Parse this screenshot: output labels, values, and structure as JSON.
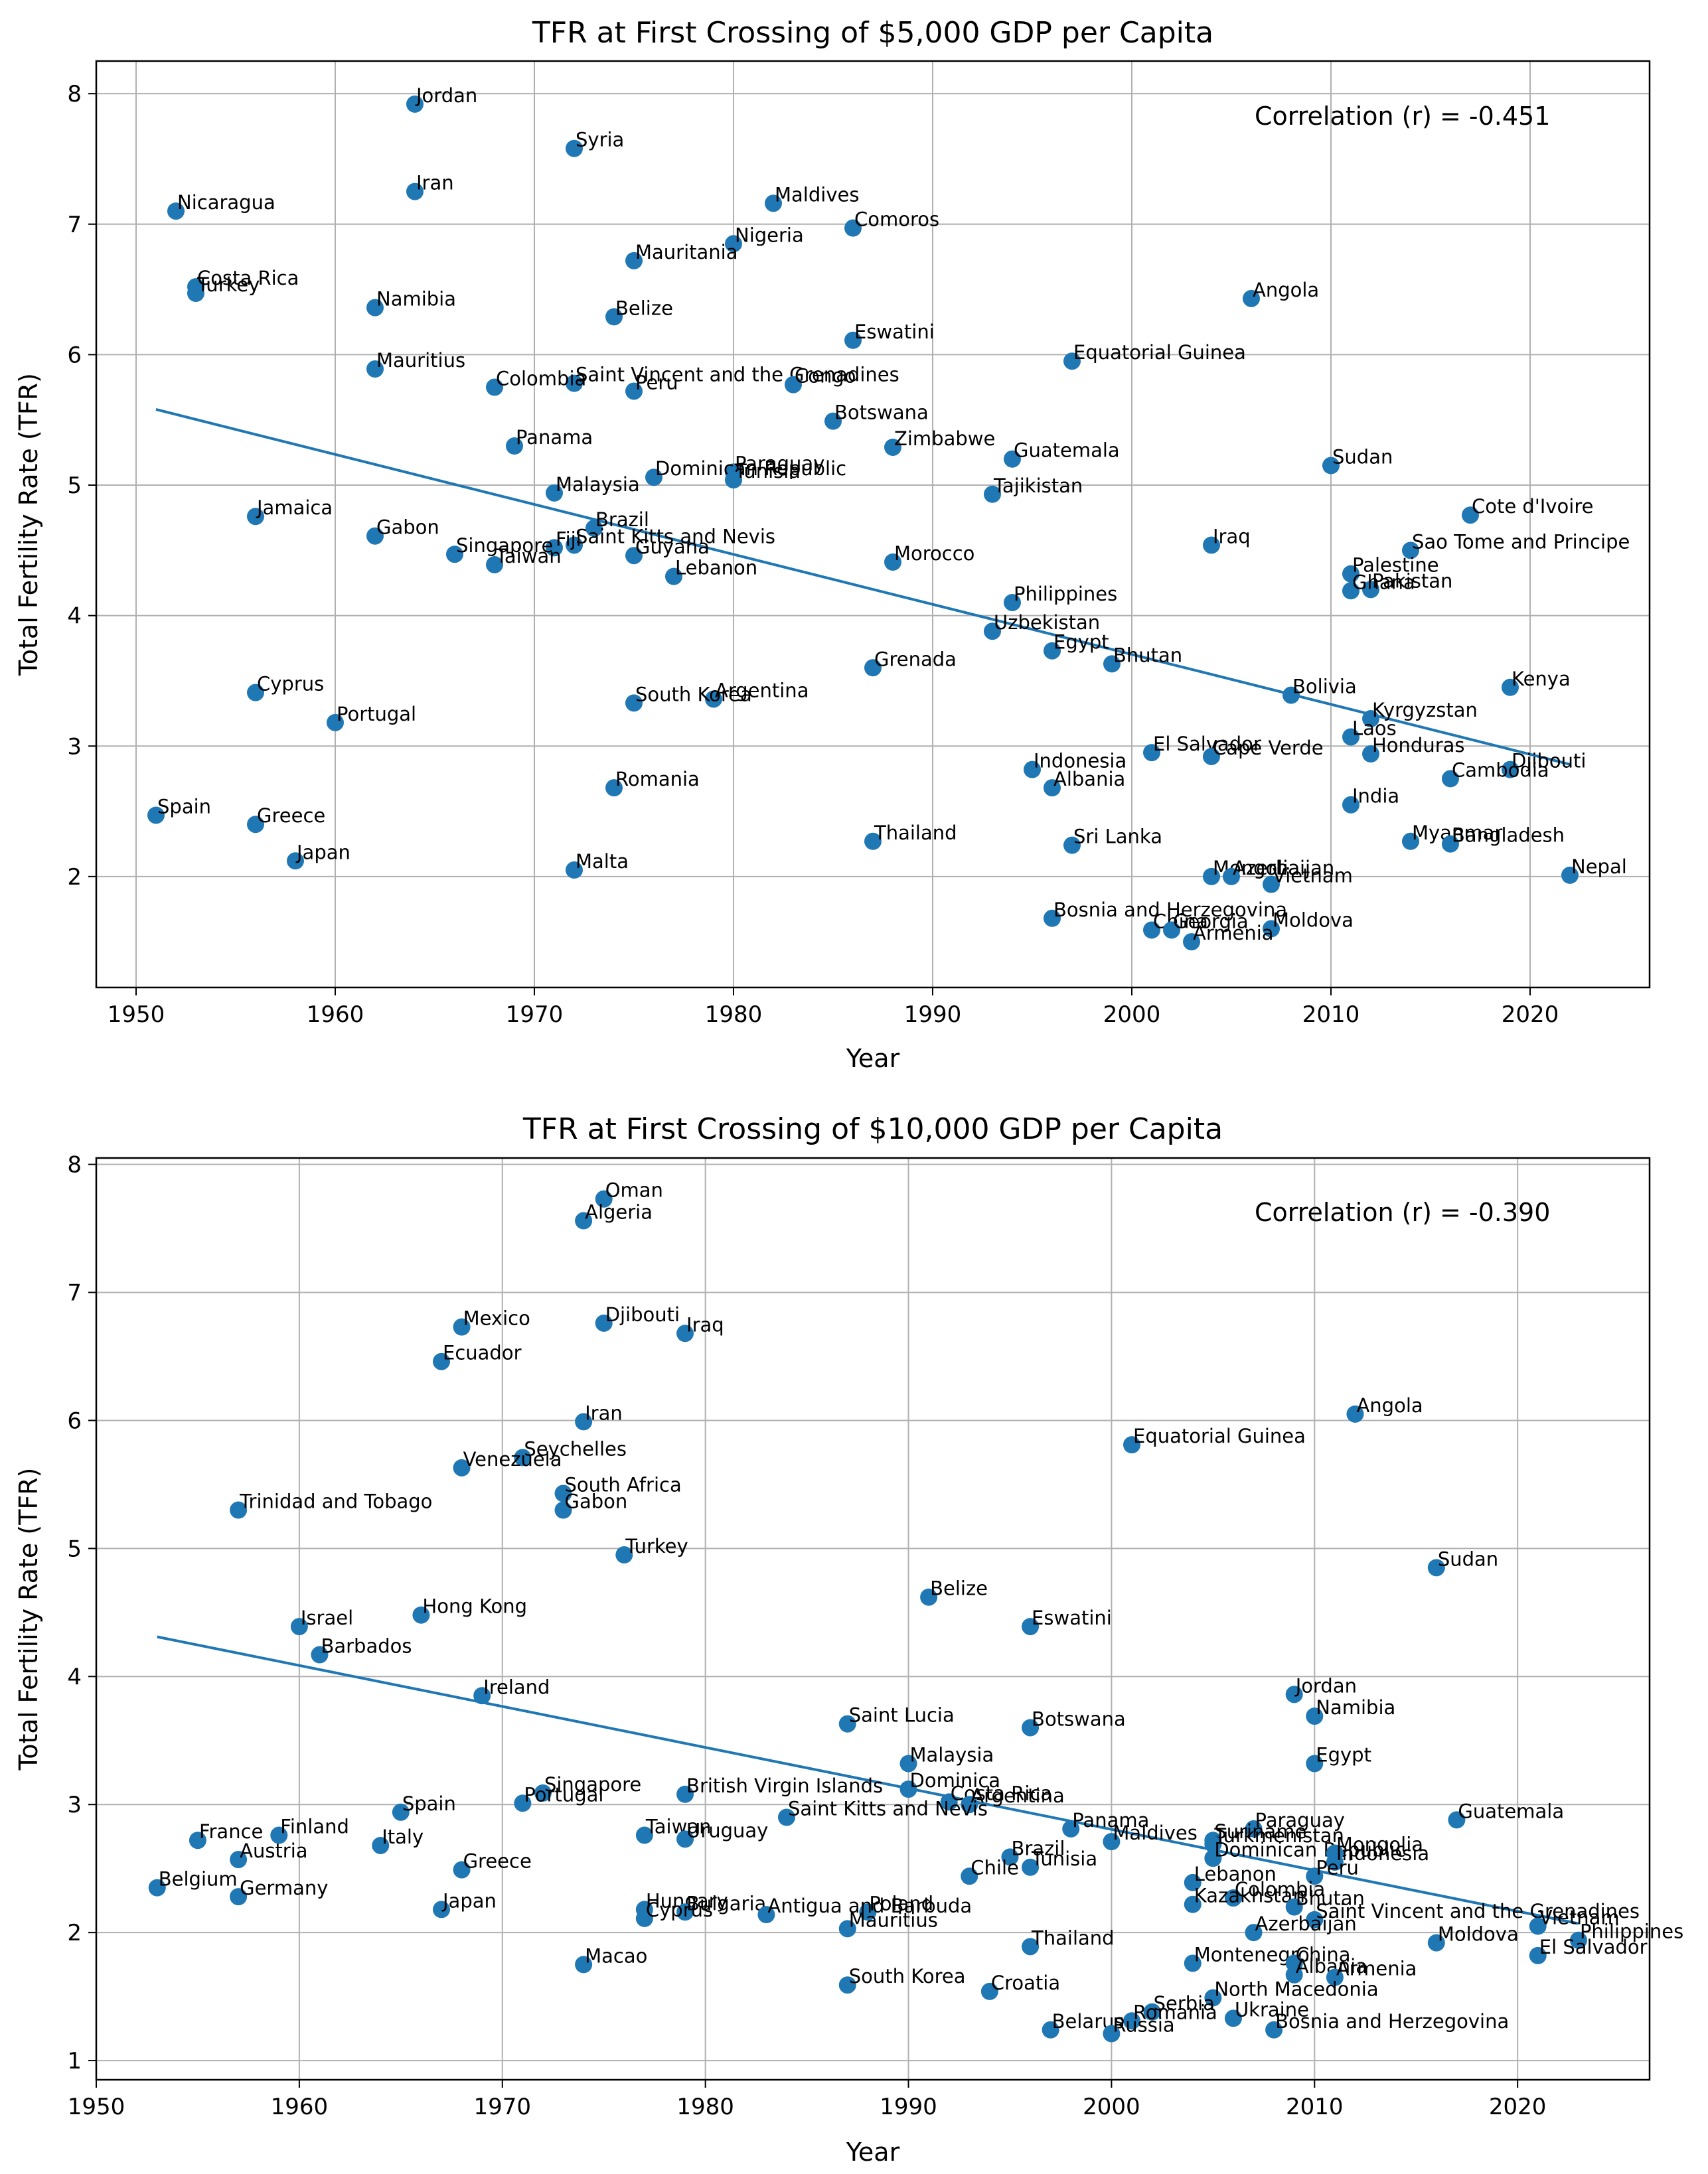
{
  "chart_data": [
    {
      "type": "scatter",
      "title": "TFR at First Crossing of $5,000 GDP per Capita",
      "xlabel": "Year",
      "ylabel": "Total Fertility Rate (TFR)",
      "xlim": [
        1948,
        2026
      ],
      "ylim": [
        1.15,
        8.25
      ],
      "xticks": [
        1950,
        1960,
        1970,
        1980,
        1990,
        2000,
        2010,
        2020
      ],
      "yticks": [
        2,
        3,
        4,
        5,
        6,
        7,
        8
      ],
      "grid": true,
      "annotation": "Correlation (r) = -0.451",
      "color": "#1f77b4",
      "trendline": {
        "x": [
          1951,
          2022
        ],
        "y": [
          5.58,
          2.86
        ]
      },
      "points": [
        {
          "label": "Jordan",
          "x": 1964,
          "y": 7.92
        },
        {
          "label": "Syria",
          "x": 1972,
          "y": 7.58
        },
        {
          "label": "Iran",
          "x": 1964,
          "y": 7.25
        },
        {
          "label": "Maldives",
          "x": 1982,
          "y": 7.16
        },
        {
          "label": "Nicaragua",
          "x": 1952,
          "y": 7.1
        },
        {
          "label": "Comoros",
          "x": 1986,
          "y": 6.97
        },
        {
          "label": "Nigeria",
          "x": 1980,
          "y": 6.85
        },
        {
          "label": "Mauritania",
          "x": 1975,
          "y": 6.72
        },
        {
          "label": "Costa Rica",
          "x": 1953,
          "y": 6.52
        },
        {
          "label": "Turkey",
          "x": 1953,
          "y": 6.47
        },
        {
          "label": "Angola",
          "x": 2006,
          "y": 6.43
        },
        {
          "label": "Namibia",
          "x": 1962,
          "y": 6.36
        },
        {
          "label": "Belize",
          "x": 1974,
          "y": 6.29
        },
        {
          "label": "Eswatini",
          "x": 1986,
          "y": 6.11
        },
        {
          "label": "Equatorial Guinea",
          "x": 1997,
          "y": 5.95
        },
        {
          "label": "Mauritius",
          "x": 1962,
          "y": 5.89
        },
        {
          "label": "Saint Vincent and the Grenadines",
          "x": 1972,
          "y": 5.78
        },
        {
          "label": "Congo",
          "x": 1983,
          "y": 5.77
        },
        {
          "label": "Colombia",
          "x": 1968,
          "y": 5.75
        },
        {
          "label": "Peru",
          "x": 1975,
          "y": 5.72
        },
        {
          "label": "Botswana",
          "x": 1985,
          "y": 5.49
        },
        {
          "label": "Panama",
          "x": 1969,
          "y": 5.3
        },
        {
          "label": "Zimbabwe",
          "x": 1988,
          "y": 5.29
        },
        {
          "label": "Guatemala",
          "x": 1994,
          "y": 5.2
        },
        {
          "label": "Sudan",
          "x": 2010,
          "y": 5.15
        },
        {
          "label": "Paraguay",
          "x": 1980,
          "y": 5.1
        },
        {
          "label": "Dominican Republic",
          "x": 1976,
          "y": 5.06
        },
        {
          "label": "Tunisia",
          "x": 1980,
          "y": 5.04
        },
        {
          "label": "Malaysia",
          "x": 1971,
          "y": 4.94
        },
        {
          "label": "Tajikistan",
          "x": 1993,
          "y": 4.93
        },
        {
          "label": "Cote d'Ivoire",
          "x": 2017,
          "y": 4.77
        },
        {
          "label": "Jamaica",
          "x": 1956,
          "y": 4.76
        },
        {
          "label": "Brazil",
          "x": 1973,
          "y": 4.67
        },
        {
          "label": "Gabon",
          "x": 1962,
          "y": 4.61
        },
        {
          "label": "Iraq",
          "x": 2004,
          "y": 4.54
        },
        {
          "label": "Saint Kitts and Nevis",
          "x": 1972,
          "y": 4.54
        },
        {
          "label": "Fiji",
          "x": 1971,
          "y": 4.52
        },
        {
          "label": "Sao Tome and Principe",
          "x": 2014,
          "y": 4.5
        },
        {
          "label": "Singapore",
          "x": 1966,
          "y": 4.47
        },
        {
          "label": "Guyana",
          "x": 1975,
          "y": 4.46
        },
        {
          "label": "Morocco",
          "x": 1988,
          "y": 4.41
        },
        {
          "label": "Taiwan",
          "x": 1968,
          "y": 4.39
        },
        {
          "label": "Palestine",
          "x": 2011,
          "y": 4.32
        },
        {
          "label": "Lebanon",
          "x": 1977,
          "y": 4.3
        },
        {
          "label": "Pakistan",
          "x": 2012,
          "y": 4.2
        },
        {
          "label": "Ghana",
          "x": 2011,
          "y": 4.19
        },
        {
          "label": "Philippines",
          "x": 1994,
          "y": 4.1
        },
        {
          "label": "Uzbekistan",
          "x": 1993,
          "y": 3.88
        },
        {
          "label": "Egypt",
          "x": 1996,
          "y": 3.73
        },
        {
          "label": "Bhutan",
          "x": 1999,
          "y": 3.63
        },
        {
          "label": "Grenada",
          "x": 1987,
          "y": 3.6
        },
        {
          "label": "Kenya",
          "x": 2019,
          "y": 3.45
        },
        {
          "label": "Cyprus",
          "x": 1956,
          "y": 3.41
        },
        {
          "label": "Bolivia",
          "x": 2008,
          "y": 3.39
        },
        {
          "label": "Argentina",
          "x": 1979,
          "y": 3.36
        },
        {
          "label": "South Korea",
          "x": 1975,
          "y": 3.33
        },
        {
          "label": "Kyrgyzstan",
          "x": 2012,
          "y": 3.21
        },
        {
          "label": "Portugal",
          "x": 1960,
          "y": 3.18
        },
        {
          "label": "Laos",
          "x": 2011,
          "y": 3.07
        },
        {
          "label": "El Salvador",
          "x": 2001,
          "y": 2.95
        },
        {
          "label": "Honduras",
          "x": 2012,
          "y": 2.94
        },
        {
          "label": "Cape Verde",
          "x": 2004,
          "y": 2.92
        },
        {
          "label": "Indonesia",
          "x": 1995,
          "y": 2.82
        },
        {
          "label": "Djibouti",
          "x": 2019,
          "y": 2.82
        },
        {
          "label": "Cambodia",
          "x": 2016,
          "y": 2.75
        },
        {
          "label": "Albania",
          "x": 1996,
          "y": 2.68
        },
        {
          "label": "Romania",
          "x": 1974,
          "y": 2.68
        },
        {
          "label": "India",
          "x": 2011,
          "y": 2.55
        },
        {
          "label": "Spain",
          "x": 1951,
          "y": 2.47
        },
        {
          "label": "Greece",
          "x": 1956,
          "y": 2.4
        },
        {
          "label": "Myanmar",
          "x": 2014,
          "y": 2.27
        },
        {
          "label": "Thailand",
          "x": 1987,
          "y": 2.27
        },
        {
          "label": "Bangladesh",
          "x": 2016,
          "y": 2.25
        },
        {
          "label": "Sri Lanka",
          "x": 1997,
          "y": 2.24
        },
        {
          "label": "Japan",
          "x": 1958,
          "y": 2.12
        },
        {
          "label": "Malta",
          "x": 1972,
          "y": 2.05
        },
        {
          "label": "Nepal",
          "x": 2022,
          "y": 2.01
        },
        {
          "label": "Mongolia",
          "x": 2004,
          "y": 2.0
        },
        {
          "label": "Azerbaijan",
          "x": 2005,
          "y": 2.0
        },
        {
          "label": "Vietnam",
          "x": 2007,
          "y": 1.94
        },
        {
          "label": "Bosnia and Herzegovina",
          "x": 1996,
          "y": 1.68
        },
        {
          "label": "Moldova",
          "x": 2007,
          "y": 1.6
        },
        {
          "label": "China",
          "x": 2001,
          "y": 1.59
        },
        {
          "label": "Georgia",
          "x": 2002,
          "y": 1.59
        },
        {
          "label": "Armenia",
          "x": 2003,
          "y": 1.5
        }
      ]
    },
    {
      "type": "scatter",
      "title": "TFR at First Crossing of $10,000 GDP per Capita",
      "xlabel": "Year",
      "ylabel": "Total Fertility Rate (TFR)",
      "xlim": [
        1950,
        2026.5
      ],
      "ylim": [
        0.85,
        8.05
      ],
      "xticks": [
        1950,
        1960,
        1970,
        1980,
        1990,
        2000,
        2010,
        2020
      ],
      "yticks": [
        1,
        2,
        3,
        4,
        5,
        6,
        7,
        8
      ],
      "grid": true,
      "annotation": "Correlation (r) = -0.390",
      "color": "#1f77b4",
      "trendline": {
        "x": [
          1953,
          2023
        ],
        "y": [
          4.31,
          2.07
        ]
      },
      "points": [
        {
          "label": "Oman",
          "x": 1975,
          "y": 7.73
        },
        {
          "label": "Algeria",
          "x": 1974,
          "y": 7.56
        },
        {
          "label": "Djibouti",
          "x": 1975,
          "y": 6.76
        },
        {
          "label": "Mexico",
          "x": 1968,
          "y": 6.73
        },
        {
          "label": "Iraq",
          "x": 1979,
          "y": 6.68
        },
        {
          "label": "Ecuador",
          "x": 1967,
          "y": 6.46
        },
        {
          "label": "Angola",
          "x": 2012,
          "y": 6.05
        },
        {
          "label": "Iran",
          "x": 1974,
          "y": 5.99
        },
        {
          "label": "Equatorial Guinea",
          "x": 2001,
          "y": 5.81
        },
        {
          "label": "Seychelles",
          "x": 1971,
          "y": 5.71
        },
        {
          "label": "Venezuela",
          "x": 1968,
          "y": 5.63
        },
        {
          "label": "South Africa",
          "x": 1973,
          "y": 5.43
        },
        {
          "label": "Gabon",
          "x": 1973,
          "y": 5.3
        },
        {
          "label": "Trinidad and Tobago",
          "x": 1957,
          "y": 5.3
        },
        {
          "label": "Turkey",
          "x": 1976,
          "y": 4.95
        },
        {
          "label": "Sudan",
          "x": 2016,
          "y": 4.85
        },
        {
          "label": "Belize",
          "x": 1991,
          "y": 4.62
        },
        {
          "label": "Hong Kong",
          "x": 1966,
          "y": 4.48
        },
        {
          "label": "Eswatini",
          "x": 1996,
          "y": 4.39
        },
        {
          "label": "Israel",
          "x": 1960,
          "y": 4.39
        },
        {
          "label": "Barbados",
          "x": 1961,
          "y": 4.17
        },
        {
          "label": "Jordan",
          "x": 2009,
          "y": 3.86
        },
        {
          "label": "Ireland",
          "x": 1969,
          "y": 3.85
        },
        {
          "label": "Namibia",
          "x": 2010,
          "y": 3.69
        },
        {
          "label": "Saint Lucia",
          "x": 1987,
          "y": 3.63
        },
        {
          "label": "Botswana",
          "x": 1996,
          "y": 3.6
        },
        {
          "label": "Malaysia",
          "x": 1990,
          "y": 3.32
        },
        {
          "label": "Egypt",
          "x": 2010,
          "y": 3.32
        },
        {
          "label": "Dominica",
          "x": 1990,
          "y": 3.12
        },
        {
          "label": "Singapore",
          "x": 1972,
          "y": 3.09
        },
        {
          "label": "British Virgin Islands",
          "x": 1979,
          "y": 3.08
        },
        {
          "label": "Portugal",
          "x": 1971,
          "y": 3.01
        },
        {
          "label": "Costa Rica",
          "x": 1992,
          "y": 3.02
        },
        {
          "label": "Argentina",
          "x": 1993,
          "y": 3.0
        },
        {
          "label": "Saint Kitts and Nevis",
          "x": 1984,
          "y": 2.9
        },
        {
          "label": "Spain",
          "x": 1965,
          "y": 2.94
        },
        {
          "label": "Guatemala",
          "x": 2017,
          "y": 2.88
        },
        {
          "label": "Panama",
          "x": 1998,
          "y": 2.81
        },
        {
          "label": "Paraguay",
          "x": 2007,
          "y": 2.81
        },
        {
          "label": "Finland",
          "x": 1959,
          "y": 2.76
        },
        {
          "label": "Taiwan",
          "x": 1977,
          "y": 2.76
        },
        {
          "label": "Uruguay",
          "x": 1979,
          "y": 2.73
        },
        {
          "label": "France",
          "x": 1955,
          "y": 2.72
        },
        {
          "label": "Maldives",
          "x": 2000,
          "y": 2.71
        },
        {
          "label": "Suriname",
          "x": 2005,
          "y": 2.72
        },
        {
          "label": "Turkmenistan",
          "x": 2005,
          "y": 2.69
        },
        {
          "label": "Italy",
          "x": 1964,
          "y": 2.68
        },
        {
          "label": "Brazil",
          "x": 1995,
          "y": 2.59
        },
        {
          "label": "Dominican Republic",
          "x": 2005,
          "y": 2.58
        },
        {
          "label": "Mongolia",
          "x": 2011,
          "y": 2.62
        },
        {
          "label": "Indonesia",
          "x": 2011,
          "y": 2.55
        },
        {
          "label": "Austria",
          "x": 1957,
          "y": 2.57
        },
        {
          "label": "Tunisia",
          "x": 1996,
          "y": 2.51
        },
        {
          "label": "Greece",
          "x": 1968,
          "y": 2.49
        },
        {
          "label": "Chile",
          "x": 1993,
          "y": 2.44
        },
        {
          "label": "Peru",
          "x": 2010,
          "y": 2.44
        },
        {
          "label": "Lebanon",
          "x": 2004,
          "y": 2.39
        },
        {
          "label": "Belgium",
          "x": 1953,
          "y": 2.35
        },
        {
          "label": "Germany",
          "x": 1957,
          "y": 2.28
        },
        {
          "label": "Colombia",
          "x": 2006,
          "y": 2.27
        },
        {
          "label": "Kazakhstan",
          "x": 2004,
          "y": 2.22
        },
        {
          "label": "Bhutan",
          "x": 2009,
          "y": 2.2
        },
        {
          "label": "Japan",
          "x": 1967,
          "y": 2.18
        },
        {
          "label": "Hungary",
          "x": 1977,
          "y": 2.18
        },
        {
          "label": "Bulgaria",
          "x": 1979,
          "y": 2.16
        },
        {
          "label": "Poland",
          "x": 1988,
          "y": 2.16
        },
        {
          "label": "Antigua and Barbuda",
          "x": 1983,
          "y": 2.14
        },
        {
          "label": "Cyprus",
          "x": 1977,
          "y": 2.11
        },
        {
          "label": "Saint Vincent and the Grenadines",
          "x": 2010,
          "y": 2.1
        },
        {
          "label": "Mauritius",
          "x": 1987,
          "y": 2.03
        },
        {
          "label": "Azerbaijan",
          "x": 2007,
          "y": 2.0
        },
        {
          "label": "Vietnam",
          "x": 2021,
          "y": 2.05
        },
        {
          "label": "Philippines",
          "x": 2023,
          "y": 1.94
        },
        {
          "label": "Moldova",
          "x": 2016,
          "y": 1.92
        },
        {
          "label": "El Salvador",
          "x": 2021,
          "y": 1.82
        },
        {
          "label": "Thailand",
          "x": 1996,
          "y": 1.89
        },
        {
          "label": "Macao",
          "x": 1974,
          "y": 1.75
        },
        {
          "label": "Montenegro",
          "x": 2004,
          "y": 1.76
        },
        {
          "label": "China",
          "x": 2009,
          "y": 1.76
        },
        {
          "label": "Albania",
          "x": 2009,
          "y": 1.67
        },
        {
          "label": "Armenia",
          "x": 2011,
          "y": 1.65
        },
        {
          "label": "South Korea",
          "x": 1987,
          "y": 1.59
        },
        {
          "label": "Croatia",
          "x": 1994,
          "y": 1.54
        },
        {
          "label": "North Macedonia",
          "x": 2005,
          "y": 1.49
        },
        {
          "label": "Serbia",
          "x": 2002,
          "y": 1.38
        },
        {
          "label": "Romania",
          "x": 2001,
          "y": 1.31
        },
        {
          "label": "Ukraine",
          "x": 2006,
          "y": 1.33
        },
        {
          "label": "Belarus",
          "x": 1997,
          "y": 1.24
        },
        {
          "label": "Russia",
          "x": 2000,
          "y": 1.21
        },
        {
          "label": "Bosnia and Herzegovina",
          "x": 2008,
          "y": 1.24
        }
      ]
    }
  ]
}
